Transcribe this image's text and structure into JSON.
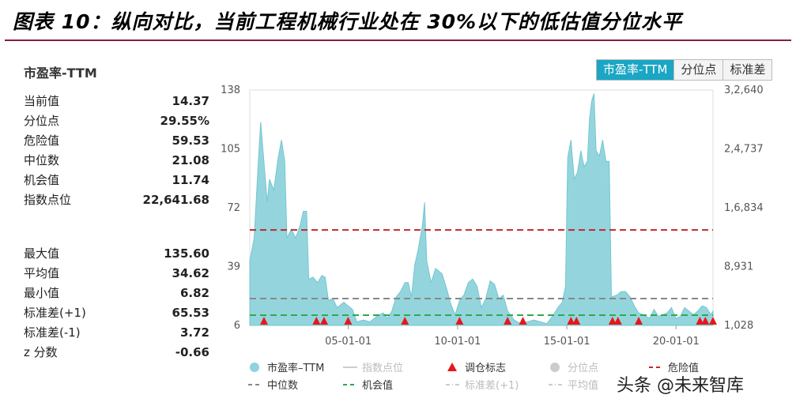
{
  "figure_title": "图表 10：纵向对比，当前工程机械行业处在 30%以下的低估值分位水平",
  "metric_title": "市盈率-TTM",
  "tabs": [
    {
      "label": "市盈率-TTM",
      "active": true
    },
    {
      "label": "分位点",
      "active": false
    },
    {
      "label": "标准差",
      "active": false
    }
  ],
  "stats_top": [
    {
      "label": "当前值",
      "value": "14.37"
    },
    {
      "label": "分位点",
      "value": "29.55%"
    },
    {
      "label": "危险值",
      "value": "59.53"
    },
    {
      "label": "中位数",
      "value": "21.08"
    },
    {
      "label": "机会值",
      "value": "11.74"
    },
    {
      "label": "指数点位",
      "value": "22,641.68"
    }
  ],
  "stats_bottom": [
    {
      "label": "最大值",
      "value": "135.60"
    },
    {
      "label": "平均值",
      "value": "34.62"
    },
    {
      "label": "最小值",
      "value": "6.82"
    },
    {
      "label": "标准差(+1)",
      "value": "65.53"
    },
    {
      "label": "标准差(-1)",
      "value": "3.72"
    },
    {
      "label": "z 分数",
      "value": "-0.66"
    }
  ],
  "watermark": "头条 @未来智库",
  "colors": {
    "area": "#8fd3dc",
    "area_line": "#6cc4d0",
    "danger": "#c0282d",
    "median": "#888888",
    "opportunity": "#2fa84f",
    "marker": "#e8161b",
    "tab_active": "#1aa6c4",
    "title_rule": "#8b1c3c"
  },
  "chart_data": {
    "type": "area",
    "title": "市盈率-TTM",
    "y_left_ticks": [
      "138",
      "105",
      "72",
      "39",
      "6"
    ],
    "y_right_ticks": [
      "3,2,640",
      "2,4,737",
      "1,6,834",
      "8,931",
      "1,028"
    ],
    "x_ticks": [
      "05-01-01",
      "10-01-01",
      "15-01-01",
      "20-01-01"
    ],
    "x_tick_years": [
      2005,
      2010,
      2015,
      2020
    ],
    "x_range": [
      2000.5,
      2021.7
    ],
    "y_range": [
      6,
      138
    ],
    "reference_lines": {
      "danger": 59.53,
      "median": 21.08,
      "opportunity": 11.74
    },
    "series_pe": [
      [
        2000.5,
        42
      ],
      [
        2000.7,
        55
      ],
      [
        2000.9,
        100
      ],
      [
        2001.0,
        120
      ],
      [
        2001.15,
        97
      ],
      [
        2001.3,
        75
      ],
      [
        2001.4,
        88
      ],
      [
        2001.6,
        82
      ],
      [
        2001.8,
        100
      ],
      [
        2001.95,
        110
      ],
      [
        2002.1,
        98
      ],
      [
        2002.2,
        55
      ],
      [
        2002.4,
        60
      ],
      [
        2002.6,
        55
      ],
      [
        2002.8,
        62
      ],
      [
        2002.95,
        70
      ],
      [
        2003.1,
        70
      ],
      [
        2003.2,
        32
      ],
      [
        2003.4,
        33
      ],
      [
        2003.6,
        30
      ],
      [
        2003.8,
        34
      ],
      [
        2003.95,
        33
      ],
      [
        2004.1,
        20
      ],
      [
        2004.3,
        21
      ],
      [
        2004.5,
        16
      ],
      [
        2004.8,
        19
      ],
      [
        2005.0,
        17
      ],
      [
        2005.2,
        15
      ],
      [
        2005.4,
        8
      ],
      [
        2005.7,
        9
      ],
      [
        2006.0,
        8
      ],
      [
        2006.3,
        11
      ],
      [
        2006.6,
        13
      ],
      [
        2006.8,
        10
      ],
      [
        2007.0,
        14
      ],
      [
        2007.2,
        22
      ],
      [
        2007.4,
        25
      ],
      [
        2007.6,
        30
      ],
      [
        2007.75,
        30
      ],
      [
        2007.9,
        22
      ],
      [
        2008.05,
        40
      ],
      [
        2008.2,
        48
      ],
      [
        2008.4,
        62
      ],
      [
        2008.5,
        75
      ],
      [
        2008.6,
        42
      ],
      [
        2008.8,
        30
      ],
      [
        2009.0,
        38
      ],
      [
        2009.3,
        35
      ],
      [
        2009.5,
        27
      ],
      [
        2009.7,
        18
      ],
      [
        2009.9,
        12
      ],
      [
        2010.1,
        20
      ],
      [
        2010.3,
        23
      ],
      [
        2010.5,
        30
      ],
      [
        2010.7,
        32
      ],
      [
        2010.9,
        28
      ],
      [
        2011.1,
        16
      ],
      [
        2011.3,
        21
      ],
      [
        2011.5,
        31
      ],
      [
        2011.7,
        29
      ],
      [
        2011.9,
        21
      ],
      [
        2012.1,
        23
      ],
      [
        2012.3,
        14
      ],
      [
        2012.6,
        9
      ],
      [
        2012.9,
        7
      ],
      [
        2013.2,
        8
      ],
      [
        2013.5,
        9
      ],
      [
        2013.8,
        8
      ],
      [
        2014.1,
        7
      ],
      [
        2014.4,
        12
      ],
      [
        2014.6,
        16
      ],
      [
        2014.8,
        19
      ],
      [
        2014.95,
        28
      ],
      [
        2015.05,
        100
      ],
      [
        2015.2,
        110
      ],
      [
        2015.35,
        88
      ],
      [
        2015.5,
        92
      ],
      [
        2015.65,
        104
      ],
      [
        2015.8,
        95
      ],
      [
        2015.95,
        98
      ],
      [
        2016.05,
        122
      ],
      [
        2016.15,
        132
      ],
      [
        2016.25,
        136
      ],
      [
        2016.35,
        104
      ],
      [
        2016.5,
        101
      ],
      [
        2016.65,
        110
      ],
      [
        2016.8,
        98
      ],
      [
        2016.95,
        98
      ],
      [
        2017.05,
        22
      ],
      [
        2017.3,
        23
      ],
      [
        2017.5,
        25
      ],
      [
        2017.7,
        25
      ],
      [
        2017.9,
        22
      ],
      [
        2018.1,
        17
      ],
      [
        2018.3,
        13
      ],
      [
        2018.5,
        12
      ],
      [
        2018.8,
        10
      ],
      [
        2019.0,
        15
      ],
      [
        2019.2,
        11
      ],
      [
        2019.4,
        12
      ],
      [
        2019.6,
        13
      ],
      [
        2019.8,
        16
      ],
      [
        2020.0,
        10
      ],
      [
        2020.2,
        11
      ],
      [
        2020.4,
        16
      ],
      [
        2020.6,
        14
      ],
      [
        2020.8,
        12
      ],
      [
        2021.0,
        14
      ],
      [
        2021.2,
        17
      ],
      [
        2021.4,
        16
      ],
      [
        2021.6,
        12
      ],
      [
        2021.7,
        14
      ]
    ],
    "rebalance_markers": [
      2001.15,
      2003.55,
      2003.9,
      2005.0,
      2007.6,
      2010.1,
      2012.3,
      2013.0,
      2015.2,
      2015.45,
      2017.1,
      2017.35,
      2018.3,
      2021.1,
      2021.35,
      2021.7
    ],
    "legend": [
      {
        "label": "市盈率–TTM",
        "style": "circle",
        "color": "#8fd3dc",
        "active": true
      },
      {
        "label": "指数点位",
        "style": "line",
        "color": "#cccccc",
        "active": false
      },
      {
        "label": "调仓标志",
        "style": "triangle",
        "color": "#e8161b",
        "active": true
      },
      {
        "label": "分位点",
        "style": "circle",
        "color": "#cccccc",
        "active": false
      },
      {
        "label": "危险值",
        "style": "dashed",
        "color": "#c0282d",
        "active": true
      },
      {
        "label": "中位数",
        "style": "dashed",
        "color": "#888888",
        "active": true
      },
      {
        "label": "机会值",
        "style": "dashed",
        "color": "#2fa84f",
        "active": true
      },
      {
        "label": "标准差(+1)",
        "style": "dashdot",
        "color": "#cccccc",
        "active": false
      },
      {
        "label": "平均值",
        "style": "dashdot",
        "color": "#cccccc",
        "active": false
      }
    ]
  }
}
